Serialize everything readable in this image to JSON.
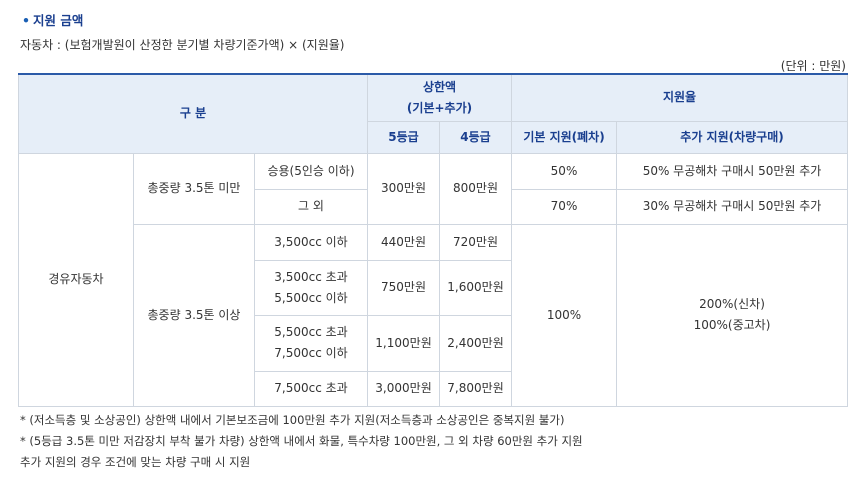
{
  "heading": "지원 금액",
  "formula": "자동차 : (보험개발원이 산정한 분기별 차량기준가액) × (지원율)",
  "unit": "(단위 : 만원)",
  "table": {
    "header": {
      "category": "구 분",
      "cap_line1": "상한액",
      "cap_line2": "(기본+추가)",
      "rate": "지원율",
      "grade5": "5등급",
      "grade4": "4등급",
      "base_rate": "기본 지원(폐차)",
      "extra_rate": "추가 지원(차량구매)"
    },
    "vehicle": "경유자동차",
    "under_label": "총중량 3.5톤 미만",
    "over_label": "총중량 3.5톤 이상",
    "rows": [
      {
        "sub": "승용(5인승 이하)"
      },
      {
        "sub": "그 외"
      },
      {
        "sub": "3,500cc 이하",
        "g5": "440만원",
        "g4": "720만원"
      },
      {
        "sub1": "3,500cc 초과",
        "sub2": "5,500cc 이하",
        "g5": "750만원",
        "g4": "1,600만원"
      },
      {
        "sub1": "5,500cc 초과",
        "sub2": "7,500cc 이하",
        "g5": "1,100만원",
        "g4": "2,400만원"
      },
      {
        "sub": "7,500cc 초과",
        "g5": "3,000만원",
        "g4": "7,800만원"
      }
    ],
    "under_g5": "300만원",
    "under_g4": "800만원",
    "rate_car": "50%",
    "extra_car": "50% 무공해차 구매시 50만원 추가",
    "rate_other": "70%",
    "extra_other": "30% 무공해차 구매시 50만원 추가",
    "rate_over": "100%",
    "extra_over_1": "200%(신차)",
    "extra_over_2": "100%(중고차)"
  },
  "notes": [
    "* (저소득층 및 소상공인) 상한액 내에서 기본보조금에 100만원 추가 지원(저소득층과 소상공인은 중복지원 불가)",
    "* (5등급 3.5톤 미만 저감장치 부착 불가 차량) 상한액 내에서 화물, 특수차량 100만원, 그 외 차량 60만원 추가 지원",
    "추가 지원의 경우 조건에 맞는 차량 구매 시 지원"
  ]
}
